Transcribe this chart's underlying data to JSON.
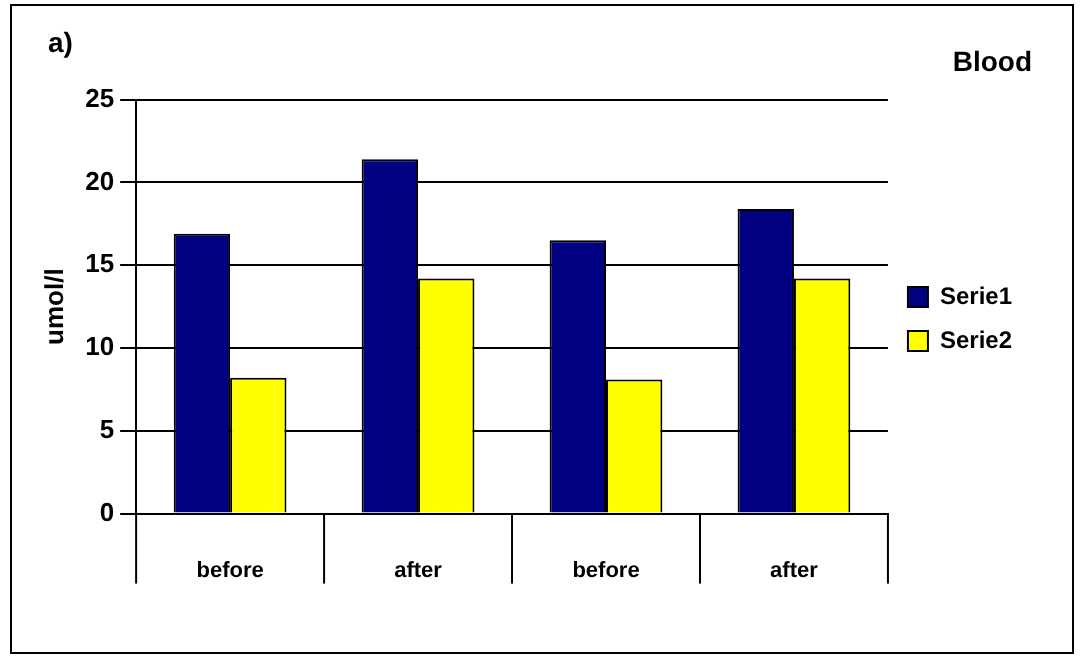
{
  "chart_data": {
    "type": "bar",
    "title": "Blood",
    "ylabel": "umol/l",
    "annotations": [
      "a)"
    ],
    "categories": [
      "before",
      "after",
      "before",
      "after"
    ],
    "series": [
      {
        "name": "Serie1",
        "color": "#000080",
        "values": [
          16.9,
          21.4,
          16.5,
          18.4
        ]
      },
      {
        "name": "Serie2",
        "color": "#ffff00",
        "values": [
          8.2,
          14.2,
          8.1,
          14.2
        ]
      }
    ],
    "ylim": [
      0,
      25
    ],
    "yticks": [
      0,
      5,
      10,
      15,
      20,
      25
    ],
    "grid": "y",
    "legend": "right"
  }
}
